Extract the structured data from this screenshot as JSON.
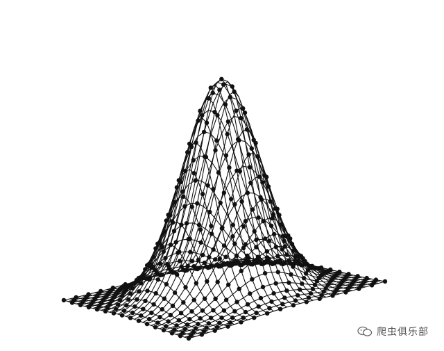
{
  "figure": {
    "kind": "3d-wireframe-gaussian-surface",
    "line_color": "#111111",
    "marker_color": "#111111",
    "background": "#ffffff"
  },
  "watermark": {
    "text": "爬虫俱乐部",
    "icon": "wechat-bubble-icon"
  }
}
